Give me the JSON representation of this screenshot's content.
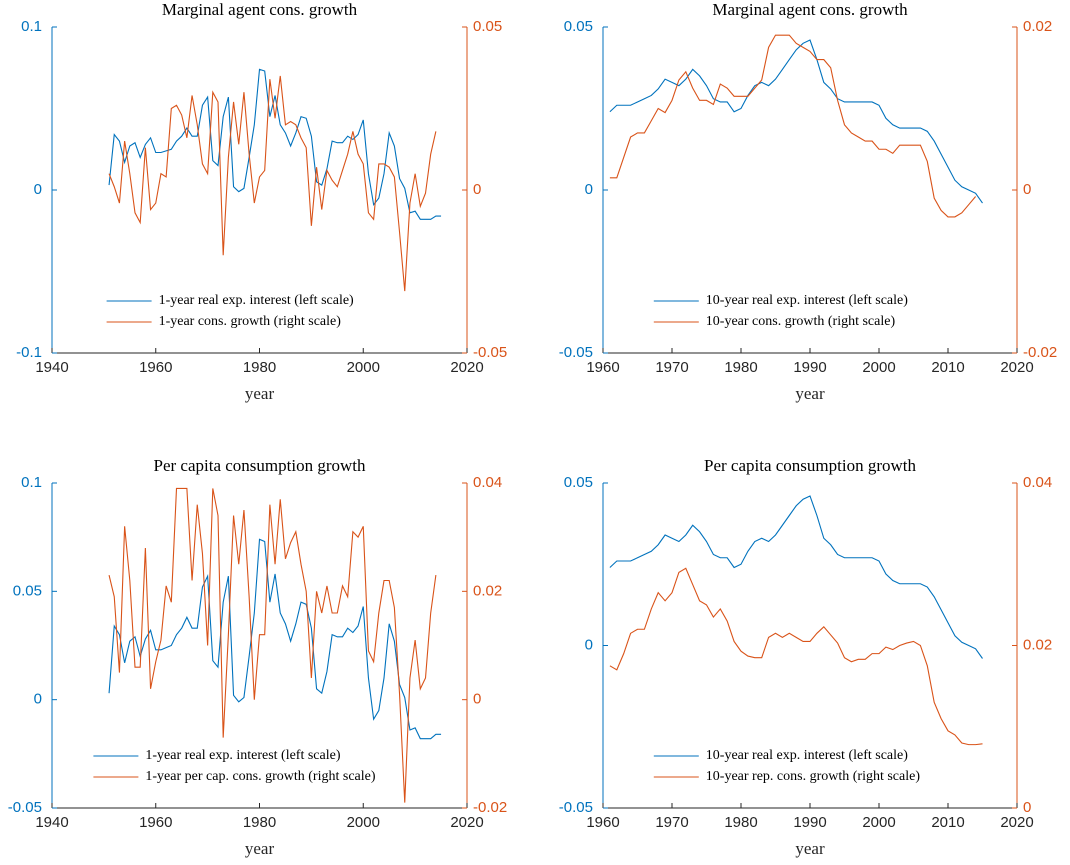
{
  "chart_data": [
    {
      "type": "line",
      "title": "Marginal agent cons. growth",
      "x_label": "year",
      "x": [
        1951,
        1952,
        1953,
        1954,
        1955,
        1956,
        1957,
        1958,
        1959,
        1960,
        1961,
        1962,
        1963,
        1964,
        1965,
        1966,
        1967,
        1968,
        1969,
        1970,
        1971,
        1972,
        1973,
        1974,
        1975,
        1976,
        1977,
        1978,
        1979,
        1980,
        1981,
        1982,
        1983,
        1984,
        1985,
        1986,
        1987,
        1988,
        1989,
        1990,
        1991,
        1992,
        1993,
        1994,
        1995,
        1996,
        1997,
        1998,
        1999,
        2000,
        2001,
        2002,
        2003,
        2004,
        2005,
        2006,
        2007,
        2008,
        2009,
        2010,
        2011,
        2012,
        2013,
        2014,
        2015
      ],
      "xlim": [
        1940,
        2020
      ],
      "xticks": [
        1940,
        1960,
        1980,
        2000,
        2020
      ],
      "ylim": [
        -0.1,
        0.1
      ],
      "yticks": [
        -0.1,
        0,
        0.1
      ],
      "y2lim": [
        -0.05,
        0.05
      ],
      "y2ticks": [
        -0.05,
        0,
        0.05
      ],
      "legend": "south",
      "series": [
        {
          "name": "1-year real exp. interest (left scale)",
          "color": "#0072BD",
          "axis": "y",
          "values": [
            0.003,
            0.034,
            0.03,
            0.017,
            0.027,
            0.029,
            0.02,
            0.028,
            0.032,
            0.023,
            0.023,
            0.024,
            0.025,
            0.03,
            0.033,
            0.038,
            0.033,
            0.033,
            0.052,
            0.057,
            0.018,
            0.015,
            0.045,
            0.057,
            0.002,
            -0.001,
            0.001,
            0.02,
            0.04,
            0.074,
            0.073,
            0.045,
            0.058,
            0.04,
            0.035,
            0.027,
            0.035,
            0.045,
            0.044,
            0.033,
            0.005,
            0.003,
            0.013,
            0.03,
            0.029,
            0.029,
            0.033,
            0.031,
            0.034,
            0.043,
            0.01,
            -0.009,
            -0.005,
            0.01,
            0.035,
            0.027,
            0.007,
            0.001,
            -0.014,
            -0.013,
            -0.018,
            -0.018,
            -0.018,
            -0.016,
            -0.016
          ]
        },
        {
          "name": "1-year cons. growth (right scale)",
          "color": "#D95319",
          "axis": "y2",
          "values": [
            0.005,
            0.001,
            -0.004,
            0.015,
            0.005,
            -0.007,
            -0.01,
            0.013,
            -0.006,
            -0.004,
            0.005,
            0.004,
            0.025,
            0.026,
            0.023,
            0.016,
            0.029,
            0.02,
            0.008,
            0.005,
            0.03,
            0.027,
            -0.02,
            0.01,
            0.027,
            0.014,
            0.03,
            0.011,
            -0.004,
            0.004,
            0.006,
            0.034,
            0.022,
            0.035,
            0.02,
            0.021,
            0.02,
            0.016,
            0.013,
            -0.011,
            0.007,
            -0.006,
            0.006,
            0.003,
            0.001,
            0.006,
            0.011,
            0.018,
            0.011,
            0.008,
            -0.007,
            -0.009,
            0.008,
            0.008,
            0.007,
            0.004,
            -0.013,
            -0.031,
            -0.004,
            0.005,
            -0.005,
            -0.001,
            0.011,
            0.018,
            null
          ]
        }
      ]
    },
    {
      "type": "line",
      "title": "Marginal agent cons. growth",
      "x_label": "year",
      "x": [
        1961,
        1962,
        1963,
        1964,
        1965,
        1966,
        1967,
        1968,
        1969,
        1970,
        1971,
        1972,
        1973,
        1974,
        1975,
        1976,
        1977,
        1978,
        1979,
        1980,
        1981,
        1982,
        1983,
        1984,
        1985,
        1986,
        1987,
        1988,
        1989,
        1990,
        1991,
        1992,
        1993,
        1994,
        1995,
        1996,
        1997,
        1998,
        1999,
        2000,
        2001,
        2002,
        2003,
        2004,
        2005,
        2006,
        2007,
        2008,
        2009,
        2010,
        2011,
        2012,
        2013,
        2014,
        2015
      ],
      "xlim": [
        1960,
        2020
      ],
      "xticks": [
        1960,
        1970,
        1980,
        1990,
        2000,
        2010,
        2020
      ],
      "ylim": [
        -0.05,
        0.05
      ],
      "yticks": [
        -0.05,
        0,
        0.05
      ],
      "y2lim": [
        -0.02,
        0.02
      ],
      "y2ticks": [
        -0.02,
        0,
        0.02
      ],
      "legend": "south",
      "series": [
        {
          "name": "10-year real exp. interest (left scale)",
          "color": "#0072BD",
          "axis": "y",
          "values": [
            0.024,
            0.026,
            0.026,
            0.026,
            0.027,
            0.028,
            0.029,
            0.031,
            0.034,
            0.033,
            0.032,
            0.034,
            0.037,
            0.035,
            0.032,
            0.028,
            0.027,
            0.027,
            0.024,
            0.025,
            0.029,
            0.032,
            0.033,
            0.032,
            0.034,
            0.037,
            0.04,
            0.043,
            0.045,
            0.046,
            0.04,
            0.033,
            0.031,
            0.028,
            0.027,
            0.027,
            0.027,
            0.027,
            0.027,
            0.026,
            0.022,
            0.02,
            0.019,
            0.019,
            0.019,
            0.019,
            0.018,
            0.015,
            0.011,
            0.007,
            0.003,
            0.001,
            0.0,
            -0.001,
            -0.004
          ]
        },
        {
          "name": "10-year cons. growth (right scale)",
          "color": "#D95319",
          "axis": "y2",
          "values": [
            0.0015,
            0.0015,
            0.004,
            0.0065,
            0.007,
            0.007,
            0.0085,
            0.01,
            0.0095,
            0.011,
            0.0135,
            0.0145,
            0.0125,
            0.011,
            0.011,
            0.0105,
            0.013,
            0.0125,
            0.0115,
            0.0115,
            0.0115,
            0.0125,
            0.0135,
            0.0175,
            0.019,
            0.019,
            0.019,
            0.018,
            0.0175,
            0.017,
            0.016,
            0.016,
            0.015,
            0.011,
            0.008,
            0.007,
            0.0065,
            0.006,
            0.006,
            0.005,
            0.005,
            0.0045,
            0.0055,
            0.0055,
            0.0055,
            0.0055,
            0.0035,
            -0.001,
            -0.0025,
            -0.0033,
            -0.0033,
            -0.0028,
            -0.0018,
            -0.0008,
            null
          ]
        }
      ]
    },
    {
      "type": "line",
      "title": "Per capita consumption growth",
      "x_label": "year",
      "x": [
        1951,
        1952,
        1953,
        1954,
        1955,
        1956,
        1957,
        1958,
        1959,
        1960,
        1961,
        1962,
        1963,
        1964,
        1965,
        1966,
        1967,
        1968,
        1969,
        1970,
        1971,
        1972,
        1973,
        1974,
        1975,
        1976,
        1977,
        1978,
        1979,
        1980,
        1981,
        1982,
        1983,
        1984,
        1985,
        1986,
        1987,
        1988,
        1989,
        1990,
        1991,
        1992,
        1993,
        1994,
        1995,
        1996,
        1997,
        1998,
        1999,
        2000,
        2001,
        2002,
        2003,
        2004,
        2005,
        2006,
        2007,
        2008,
        2009,
        2010,
        2011,
        2012,
        2013,
        2014,
        2015
      ],
      "xlim": [
        1940,
        2020
      ],
      "xticks": [
        1940,
        1960,
        1980,
        2000,
        2020
      ],
      "ylim": [
        -0.05,
        0.1
      ],
      "yticks": [
        -0.05,
        0,
        0.05,
        0.1
      ],
      "y2lim": [
        -0.02,
        0.04
      ],
      "y2ticks": [
        -0.02,
        0,
        0.02,
        0.04
      ],
      "legend": "south",
      "series": [
        {
          "name": "1-year real exp. interest (left scale)",
          "color": "#0072BD",
          "axis": "y",
          "values": [
            0.003,
            0.034,
            0.03,
            0.017,
            0.027,
            0.029,
            0.02,
            0.028,
            0.032,
            0.023,
            0.023,
            0.024,
            0.025,
            0.03,
            0.033,
            0.038,
            0.033,
            0.033,
            0.052,
            0.057,
            0.018,
            0.015,
            0.045,
            0.057,
            0.002,
            -0.001,
            0.001,
            0.02,
            0.04,
            0.074,
            0.073,
            0.045,
            0.058,
            0.04,
            0.035,
            0.027,
            0.035,
            0.045,
            0.044,
            0.033,
            0.005,
            0.003,
            0.013,
            0.03,
            0.029,
            0.029,
            0.033,
            0.031,
            0.034,
            0.043,
            0.01,
            -0.009,
            -0.005,
            0.01,
            0.035,
            0.027,
            0.007,
            0.001,
            -0.014,
            -0.013,
            -0.018,
            -0.018,
            -0.018,
            -0.016,
            -0.016
          ]
        },
        {
          "name": "1-year per cap. cons. growth (right scale)",
          "color": "#D95319",
          "axis": "y2",
          "values": [
            0.023,
            0.019,
            0.005,
            0.032,
            0.022,
            0.006,
            0.006,
            0.028,
            0.002,
            0.007,
            0.011,
            0.021,
            0.018,
            0.039,
            0.039,
            0.039,
            0.022,
            0.036,
            0.027,
            0.01,
            0.039,
            0.034,
            -0.007,
            0.012,
            0.034,
            0.025,
            0.035,
            0.019,
            0.0,
            0.012,
            0.012,
            0.036,
            0.025,
            0.037,
            0.026,
            0.029,
            0.031,
            0.025,
            0.02,
            0.004,
            0.02,
            0.016,
            0.021,
            0.016,
            0.016,
            0.021,
            0.019,
            0.031,
            0.03,
            0.032,
            0.009,
            0.007,
            0.016,
            0.022,
            0.022,
            0.017,
            0.001,
            -0.019,
            0.004,
            0.011,
            0.002,
            0.004,
            0.016,
            0.023,
            null
          ]
        }
      ]
    },
    {
      "type": "line",
      "title": "Per capita consumption growth",
      "x_label": "year",
      "x": [
        1961,
        1962,
        1963,
        1964,
        1965,
        1966,
        1967,
        1968,
        1969,
        1970,
        1971,
        1972,
        1973,
        1974,
        1975,
        1976,
        1977,
        1978,
        1979,
        1980,
        1981,
        1982,
        1983,
        1984,
        1985,
        1986,
        1987,
        1988,
        1989,
        1990,
        1991,
        1992,
        1993,
        1994,
        1995,
        1996,
        1997,
        1998,
        1999,
        2000,
        2001,
        2002,
        2003,
        2004,
        2005,
        2006,
        2007,
        2008,
        2009,
        2010,
        2011,
        2012,
        2013,
        2014,
        2015
      ],
      "xlim": [
        1960,
        2020
      ],
      "xticks": [
        1960,
        1970,
        1980,
        1990,
        2000,
        2010,
        2020
      ],
      "ylim": [
        -0.05,
        0.05
      ],
      "yticks": [
        -0.05,
        0,
        0.05
      ],
      "y2lim": [
        0,
        0.04
      ],
      "y2ticks": [
        0,
        0.02,
        0.04
      ],
      "legend": "south",
      "series": [
        {
          "name": "10-year real exp. interest (left scale)",
          "color": "#0072BD",
          "axis": "y",
          "values": [
            0.024,
            0.026,
            0.026,
            0.026,
            0.027,
            0.028,
            0.029,
            0.031,
            0.034,
            0.033,
            0.032,
            0.034,
            0.037,
            0.035,
            0.032,
            0.028,
            0.027,
            0.027,
            0.024,
            0.025,
            0.029,
            0.032,
            0.033,
            0.032,
            0.034,
            0.037,
            0.04,
            0.043,
            0.045,
            0.046,
            0.04,
            0.033,
            0.031,
            0.028,
            0.027,
            0.027,
            0.027,
            0.027,
            0.027,
            0.026,
            0.022,
            0.02,
            0.019,
            0.019,
            0.019,
            0.019,
            0.018,
            0.015,
            0.011,
            0.007,
            0.003,
            0.001,
            0.0,
            -0.001,
            -0.004
          ]
        },
        {
          "name": "10-year rep. cons. growth (right scale)",
          "color": "#D95319",
          "axis": "y2",
          "values": [
            0.0175,
            0.017,
            0.019,
            0.0215,
            0.022,
            0.022,
            0.0245,
            0.0265,
            0.0255,
            0.0265,
            0.029,
            0.0295,
            0.0275,
            0.0255,
            0.025,
            0.0235,
            0.0245,
            0.023,
            0.0205,
            0.0193,
            0.0187,
            0.0185,
            0.0185,
            0.021,
            0.0215,
            0.021,
            0.0215,
            0.021,
            0.0205,
            0.0205,
            0.0215,
            0.0223,
            0.0213,
            0.0203,
            0.0185,
            0.018,
            0.0183,
            0.0183,
            0.019,
            0.019,
            0.0198,
            0.0195,
            0.02,
            0.0203,
            0.0205,
            0.02,
            0.0175,
            0.013,
            0.011,
            0.0095,
            0.009,
            0.008,
            0.0078,
            0.0078,
            0.0079
          ]
        }
      ]
    }
  ]
}
